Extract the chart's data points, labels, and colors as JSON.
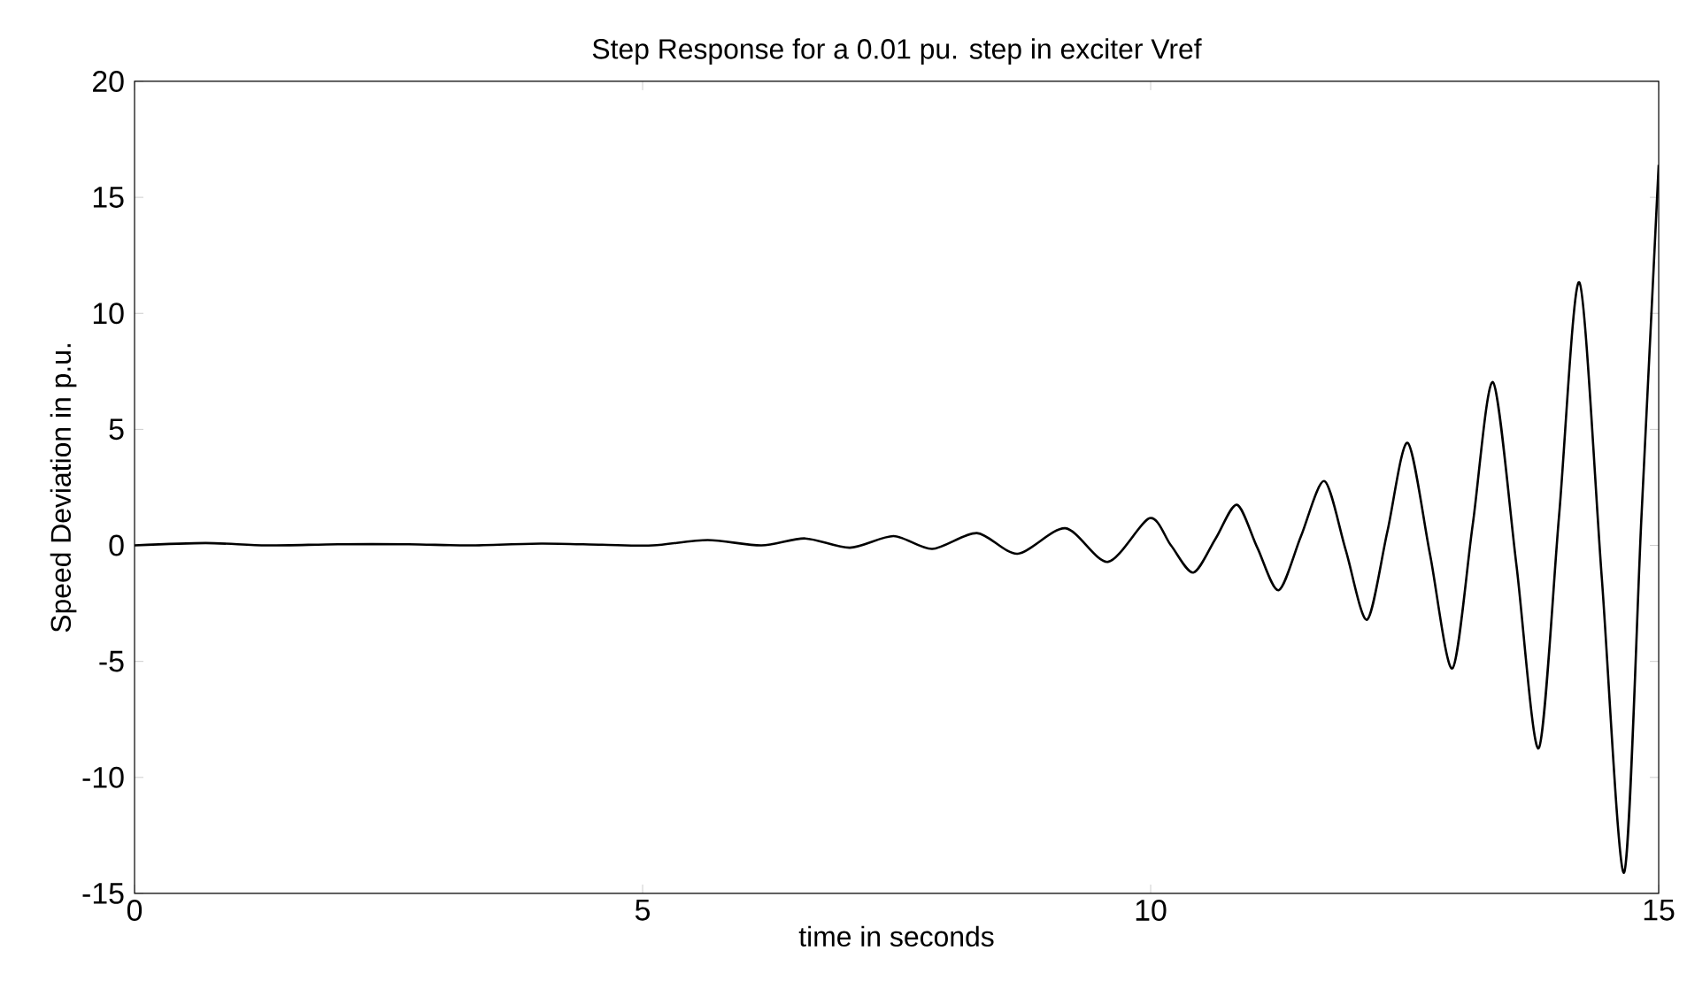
{
  "chart_data": {
    "type": "line",
    "title": "Step Response for a 0.01 pu. step in exciter Vref",
    "xlabel": "time in seconds",
    "ylabel": "Speed Deviation in p.u.",
    "xlim": [
      0,
      15
    ],
    "ylim": [
      -15,
      20
    ],
    "xticks": [
      0,
      5,
      10,
      15
    ],
    "yticks": [
      -15,
      -10,
      -5,
      0,
      5,
      10,
      15,
      20
    ],
    "grid": false,
    "marker": "none",
    "line_style": "solid",
    "series": [
      {
        "color": "#000000",
        "x": [
          0,
          0.7,
          1.3,
          2.0,
          2.7,
          3.3,
          4.0,
          4.6,
          5.1,
          5.64,
          6.17,
          6.6,
          7.04,
          7.47,
          7.85,
          8.29,
          8.69,
          9.16,
          9.58,
          9.99,
          10.2,
          10.42,
          10.64,
          10.85,
          11.05,
          11.26,
          11.48,
          11.71,
          11.92,
          12.13,
          12.33,
          12.53,
          12.75,
          12.97,
          13.17,
          13.37,
          13.6,
          13.82,
          14.02,
          14.22,
          14.44,
          14.66,
          14.83,
          15
        ],
        "values": [
          0,
          0.1,
          0,
          0.05,
          0.05,
          0,
          0.08,
          0.03,
          0,
          0.23,
          0,
          0.3,
          -0.1,
          0.4,
          -0.15,
          0.53,
          -0.36,
          0.74,
          -0.71,
          1.17,
          0,
          -1.17,
          0.3,
          1.75,
          -0.1,
          -1.93,
          0.4,
          2.77,
          -0.2,
          -3.2,
          0.6,
          4.42,
          -0.4,
          -5.3,
          0.9,
          7.03,
          -0.85,
          -8.74,
          1.3,
          11.33,
          -1.4,
          -14.1,
          1.2,
          16.4
        ]
      }
    ]
  }
}
